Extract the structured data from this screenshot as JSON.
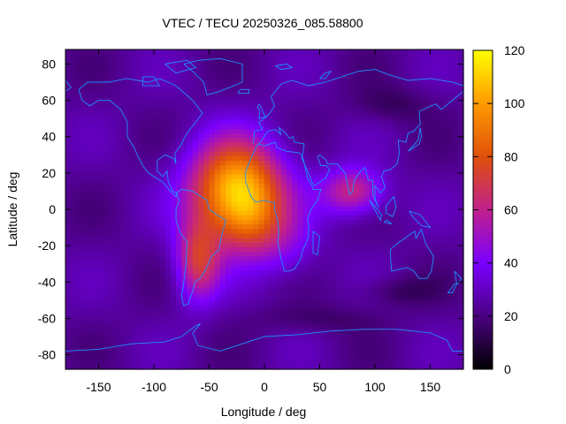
{
  "chart_data": {
    "type": "heatmap",
    "title": "VTEC / TECU 20250326_085.58800",
    "xlabel": "Longitude / deg",
    "ylabel": "Latitude / deg",
    "xlim": [
      -180,
      180
    ],
    "ylim": [
      -88,
      88
    ],
    "x_ticks": [
      -150,
      -100,
      -50,
      0,
      50,
      100,
      150
    ],
    "y_ticks": [
      -80,
      -60,
      -40,
      -20,
      0,
      20,
      40,
      60,
      80
    ],
    "colorbar": {
      "range": [
        0,
        120
      ],
      "ticks": [
        0,
        20,
        40,
        60,
        80,
        100,
        120
      ],
      "palette": [
        "#000000",
        "#4b0082",
        "#7a00ff",
        "#c0208c",
        "#e0500a",
        "#ff9a00",
        "#ffff00"
      ]
    },
    "grid_resolution_deg": {
      "lon": 5,
      "lat": 2.5
    },
    "features": [
      {
        "name": "main anomaly peak (south Atlantic / west Africa)",
        "lon": -25,
        "lat": 15,
        "vtec": 110
      },
      {
        "name": "secondary peak",
        "lon": -15,
        "lat": -5,
        "vtec": 100
      },
      {
        "name": "south America lobe",
        "lon": -60,
        "lat": -25,
        "vtec": 75
      },
      {
        "name": "Indian ocean lobe",
        "lon": 85,
        "lat": 12,
        "vtec": 70
      },
      {
        "name": "background (night side)",
        "lon": 150,
        "lat": 0,
        "vtec": 25
      }
    ],
    "overlay": "coastlines"
  }
}
